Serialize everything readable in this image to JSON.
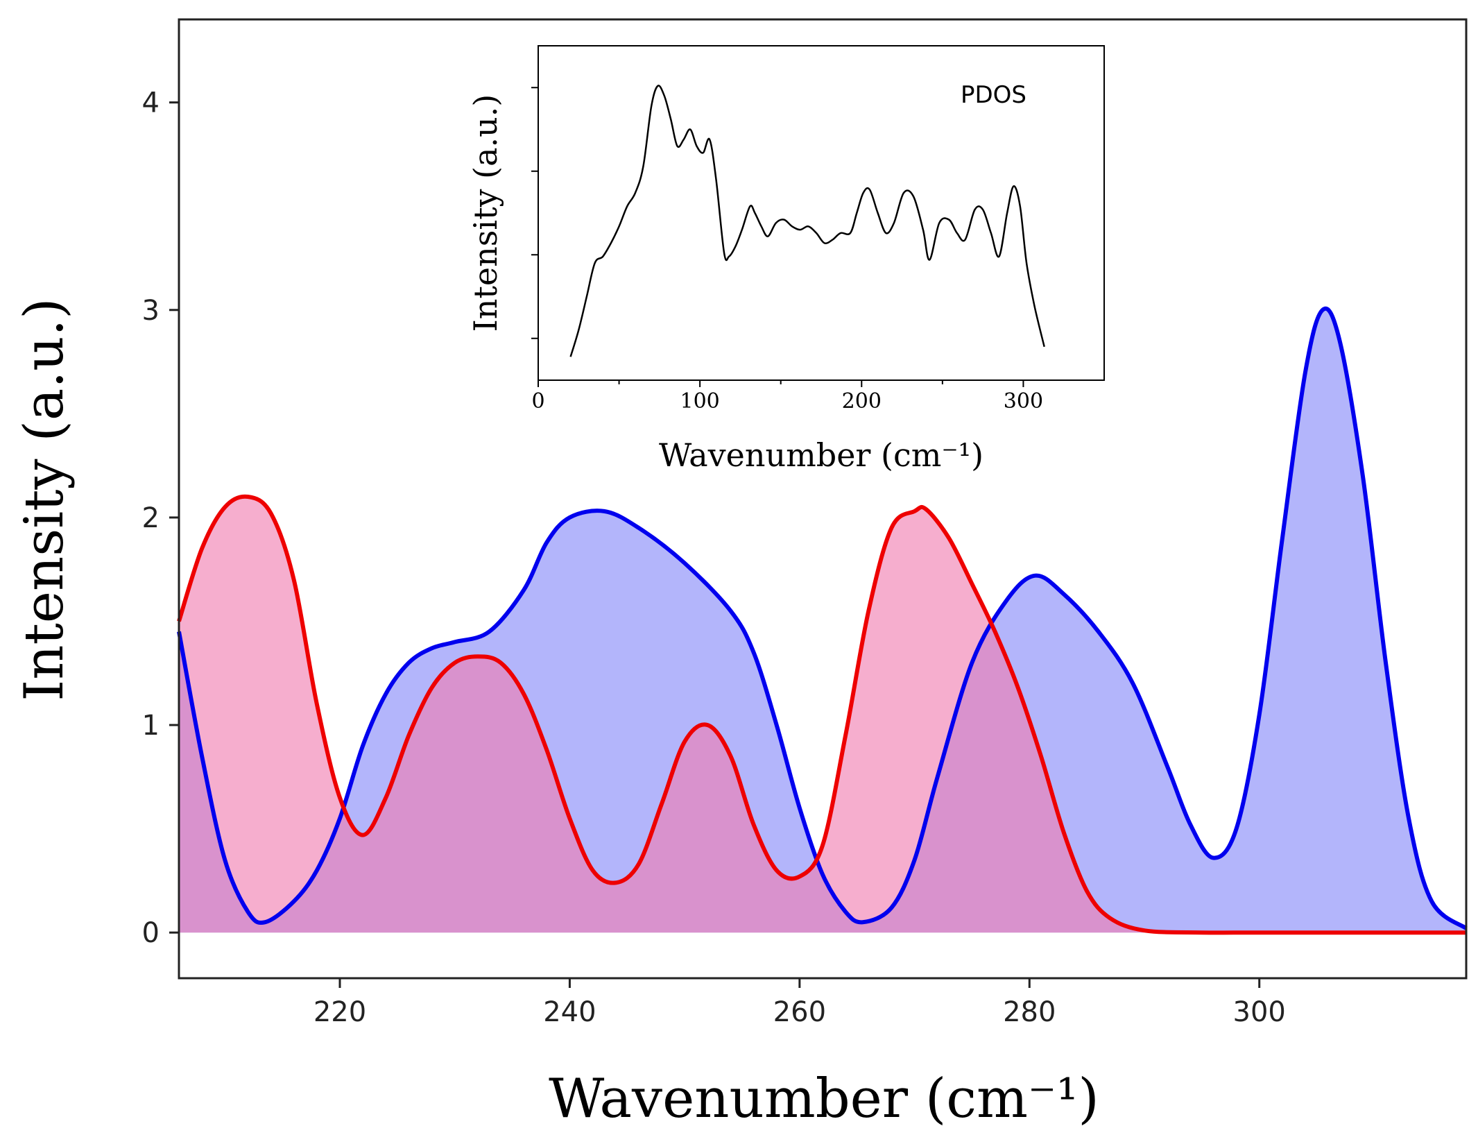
{
  "chart_data": [
    {
      "type": "area",
      "xlabel": "Wavenumber (cm⁻¹)",
      "ylabel": "Intensity (a.u.)",
      "xlim": [
        206,
        318
      ],
      "ylim": [
        -0.22,
        4.4
      ],
      "xticks": [
        220,
        240,
        260,
        280,
        300
      ],
      "yticks": [
        0,
        1,
        2,
        3,
        4
      ],
      "series": [
        {
          "name": "blue",
          "color": "#0000ee",
          "fill": "#b3b5fb",
          "x": [
            206,
            208,
            210,
            212,
            213.5,
            216,
            218,
            220,
            222,
            224,
            226,
            228,
            230,
            233,
            236,
            238,
            240,
            243,
            246,
            250,
            254,
            256,
            258,
            260,
            262,
            264,
            265.5,
            268,
            270,
            272,
            275,
            278,
            280.5,
            283,
            286,
            289,
            292,
            294,
            296,
            298,
            300,
            302,
            304,
            305.5,
            307,
            309,
            311,
            313,
            315,
            318
          ],
          "y": [
            1.45,
            0.85,
            0.35,
            0.1,
            0.05,
            0.15,
            0.3,
            0.55,
            0.9,
            1.15,
            1.3,
            1.37,
            1.4,
            1.45,
            1.65,
            1.88,
            2.0,
            2.03,
            1.95,
            1.78,
            1.55,
            1.35,
            1.0,
            0.6,
            0.28,
            0.1,
            0.05,
            0.12,
            0.35,
            0.75,
            1.3,
            1.6,
            1.72,
            1.63,
            1.45,
            1.2,
            0.8,
            0.52,
            0.36,
            0.5,
            1.05,
            1.9,
            2.7,
            3.0,
            2.85,
            2.2,
            1.3,
            0.55,
            0.15,
            0.02
          ]
        },
        {
          "name": "red",
          "color": "#ee0000",
          "fill": "#f07cb0",
          "x": [
            206,
            208,
            210,
            212,
            214,
            216,
            218,
            220,
            222,
            224,
            226,
            228,
            230,
            232,
            234,
            236,
            238,
            240,
            242,
            244,
            246,
            248,
            250,
            252,
            254,
            256,
            258,
            260,
            262,
            264,
            266,
            268,
            270,
            271,
            273,
            275,
            277,
            279,
            281,
            283,
            285,
            287,
            290,
            295,
            300,
            318
          ],
          "y": [
            1.5,
            1.85,
            2.05,
            2.1,
            2.02,
            1.7,
            1.1,
            0.65,
            0.47,
            0.65,
            0.95,
            1.18,
            1.3,
            1.33,
            1.3,
            1.15,
            0.88,
            0.55,
            0.3,
            0.24,
            0.33,
            0.62,
            0.92,
            1.0,
            0.85,
            0.52,
            0.3,
            0.27,
            0.42,
            0.95,
            1.55,
            1.95,
            2.03,
            2.04,
            1.9,
            1.68,
            1.45,
            1.18,
            0.85,
            0.48,
            0.2,
            0.07,
            0.01,
            0.0,
            0.0,
            0.0
          ]
        }
      ]
    },
    {
      "type": "line",
      "title": "PDOS",
      "xlabel": "Wavenumber (cm⁻¹)",
      "ylabel": "Intensity (a.u.)",
      "xlim": [
        0,
        350
      ],
      "ylim": [
        0,
        1
      ],
      "xticks": [
        0,
        100,
        200,
        300
      ],
      "series": [
        {
          "name": "PDOS",
          "color": "#000000",
          "x": [
            20,
            25,
            30,
            35,
            40,
            45,
            50,
            55,
            60,
            65,
            70,
            74,
            78,
            82,
            86,
            90,
            94,
            98,
            102,
            106,
            110,
            115,
            118,
            122,
            126,
            131,
            134,
            138,
            142,
            147,
            152,
            157,
            162,
            167,
            172,
            177,
            182,
            187,
            193,
            197,
            201,
            205,
            210,
            215,
            220,
            226,
            232,
            238,
            242,
            248,
            254,
            259,
            264,
            270,
            275,
            280,
            285,
            290,
            294,
            298,
            302,
            307,
            313
          ],
          "y": [
            0.07,
            0.15,
            0.25,
            0.35,
            0.37,
            0.41,
            0.46,
            0.52,
            0.56,
            0.64,
            0.82,
            0.88,
            0.85,
            0.78,
            0.7,
            0.72,
            0.75,
            0.7,
            0.68,
            0.72,
            0.6,
            0.38,
            0.37,
            0.4,
            0.45,
            0.52,
            0.5,
            0.46,
            0.43,
            0.47,
            0.48,
            0.46,
            0.45,
            0.46,
            0.44,
            0.41,
            0.42,
            0.44,
            0.44,
            0.5,
            0.56,
            0.57,
            0.5,
            0.44,
            0.47,
            0.56,
            0.55,
            0.45,
            0.36,
            0.47,
            0.48,
            0.44,
            0.42,
            0.51,
            0.51,
            0.44,
            0.37,
            0.5,
            0.58,
            0.52,
            0.35,
            0.22,
            0.1
          ]
        }
      ]
    }
  ]
}
